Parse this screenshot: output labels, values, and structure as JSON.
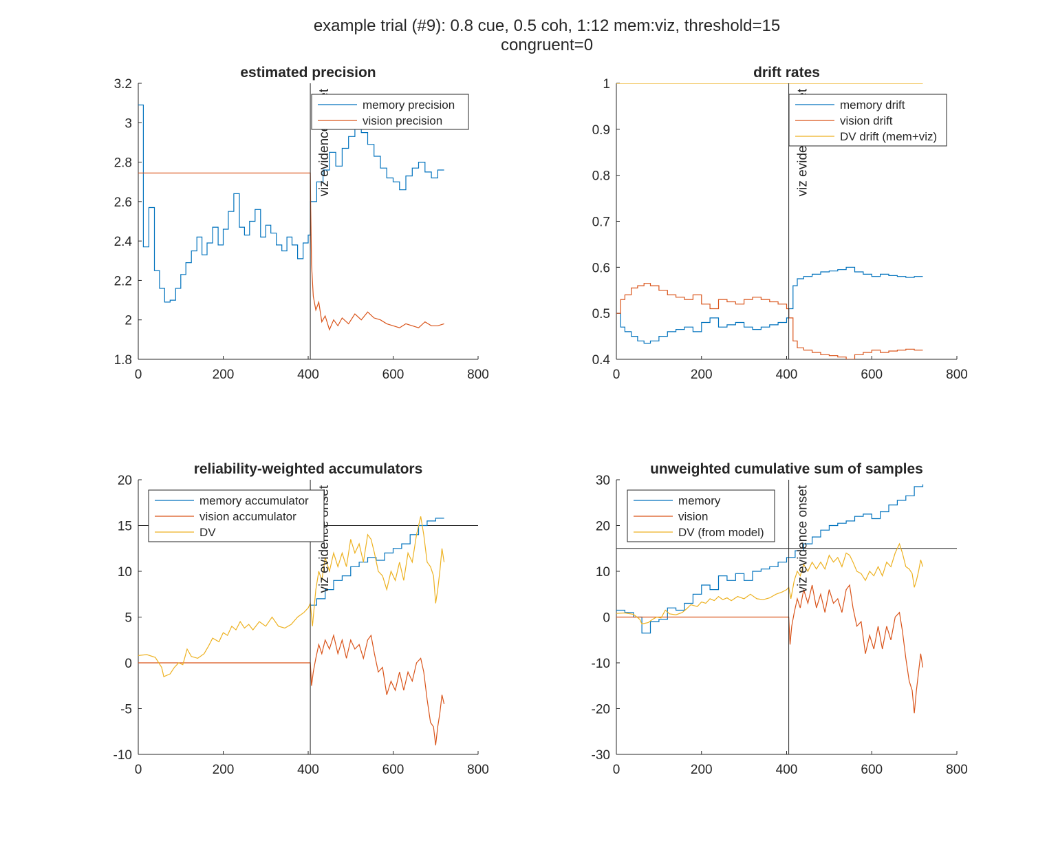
{
  "figure": {
    "title_line1": "example trial (#9): 0.8 cue, 0.5 coh, 1:12 mem:viz, threshold=15",
    "title_line2": "congruent=0"
  },
  "colors": {
    "blue": "#0072BD",
    "orange": "#D95319",
    "yellow": "#EDB120",
    "axis": "#262626",
    "refline": "#262626"
  },
  "chart_data": [
    {
      "type": "line",
      "title": "estimated precision",
      "xlim": [
        0,
        800
      ],
      "ylim": [
        1.8,
        3.2
      ],
      "xticks": [
        0,
        200,
        400,
        600,
        800
      ],
      "yticks": [
        1.8,
        2,
        2.2,
        2.4,
        2.6,
        2.8,
        3,
        3.2
      ],
      "grid": false,
      "legend_position": "top-right",
      "vline": {
        "x": 405,
        "label": "viz evidence onset"
      },
      "series": [
        {
          "name": "memory precision",
          "color": "blue",
          "step": true,
          "x": [
            0,
            12,
            25,
            38,
            50,
            62,
            75,
            88,
            100,
            112,
            125,
            138,
            150,
            162,
            175,
            188,
            200,
            212,
            225,
            238,
            250,
            262,
            275,
            288,
            300,
            312,
            325,
            338,
            350,
            362,
            375,
            388,
            400,
            405,
            420,
            435,
            450,
            465,
            480,
            495,
            510,
            525,
            540,
            555,
            570,
            585,
            600,
            615,
            630,
            645,
            660,
            675,
            690,
            705,
            720
          ],
          "y": [
            3.09,
            2.37,
            2.57,
            2.25,
            2.16,
            2.09,
            2.1,
            2.16,
            2.23,
            2.29,
            2.35,
            2.42,
            2.33,
            2.39,
            2.47,
            2.38,
            2.46,
            2.55,
            2.64,
            2.47,
            2.43,
            2.5,
            2.56,
            2.42,
            2.48,
            2.44,
            2.38,
            2.35,
            2.42,
            2.38,
            2.31,
            2.39,
            2.43,
            2.6,
            2.7,
            2.76,
            2.85,
            2.78,
            2.87,
            2.93,
            2.98,
            2.95,
            2.89,
            2.83,
            2.77,
            2.72,
            2.7,
            2.66,
            2.73,
            2.77,
            2.8,
            2.75,
            2.72,
            2.76,
            2.76
          ]
        },
        {
          "name": "vision precision",
          "color": "orange",
          "step": false,
          "x": [
            0,
            405,
            406,
            408,
            412,
            418,
            425,
            432,
            440,
            450,
            460,
            470,
            480,
            495,
            510,
            525,
            540,
            555,
            570,
            585,
            600,
            615,
            630,
            645,
            660,
            675,
            690,
            705,
            720
          ],
          "y": [
            2.745,
            2.745,
            2.56,
            2.28,
            2.12,
            2.05,
            2.09,
            1.99,
            2.02,
            1.95,
            2.0,
            1.97,
            2.01,
            1.98,
            2.03,
            2.0,
            2.04,
            2.01,
            2.0,
            1.98,
            1.97,
            1.96,
            1.98,
            1.97,
            1.96,
            1.99,
            1.97,
            1.97,
            1.98
          ]
        }
      ]
    },
    {
      "type": "line",
      "title": "drift rates",
      "xlim": [
        0,
        800
      ],
      "ylim": [
        0.4,
        1
      ],
      "xticks": [
        0,
        200,
        400,
        600,
        800
      ],
      "yticks": [
        0.4,
        0.5,
        0.6,
        0.7,
        0.8,
        0.9,
        1
      ],
      "grid": false,
      "legend_position": "top-right",
      "vline": {
        "x": 405,
        "label": "viz evidence onset"
      },
      "series": [
        {
          "name": "memory drift",
          "color": "blue",
          "step": true,
          "x": [
            0,
            10,
            20,
            35,
            50,
            65,
            80,
            100,
            120,
            140,
            160,
            180,
            200,
            220,
            240,
            260,
            280,
            300,
            320,
            340,
            360,
            380,
            400,
            405,
            415,
            425,
            440,
            460,
            480,
            500,
            520,
            540,
            560,
            580,
            600,
            620,
            640,
            660,
            680,
            700,
            720
          ],
          "y": [
            0.5,
            0.47,
            0.46,
            0.45,
            0.44,
            0.435,
            0.44,
            0.45,
            0.46,
            0.465,
            0.47,
            0.46,
            0.48,
            0.49,
            0.47,
            0.475,
            0.48,
            0.47,
            0.465,
            0.47,
            0.475,
            0.48,
            0.49,
            0.51,
            0.56,
            0.575,
            0.58,
            0.585,
            0.59,
            0.592,
            0.595,
            0.6,
            0.59,
            0.585,
            0.58,
            0.585,
            0.582,
            0.58,
            0.578,
            0.58,
            0.58
          ]
        },
        {
          "name": "vision drift",
          "color": "orange",
          "step": true,
          "x": [
            0,
            10,
            20,
            35,
            50,
            65,
            80,
            100,
            120,
            140,
            160,
            180,
            200,
            220,
            240,
            260,
            280,
            300,
            320,
            340,
            360,
            380,
            400,
            405,
            415,
            425,
            440,
            460,
            480,
            500,
            520,
            540,
            560,
            580,
            600,
            620,
            640,
            660,
            680,
            700,
            720
          ],
          "y": [
            0.5,
            0.53,
            0.54,
            0.555,
            0.56,
            0.565,
            0.56,
            0.55,
            0.54,
            0.535,
            0.53,
            0.54,
            0.52,
            0.51,
            0.53,
            0.525,
            0.52,
            0.53,
            0.535,
            0.53,
            0.525,
            0.52,
            0.51,
            0.49,
            0.44,
            0.425,
            0.42,
            0.415,
            0.41,
            0.408,
            0.405,
            0.4,
            0.41,
            0.415,
            0.42,
            0.415,
            0.418,
            0.42,
            0.422,
            0.42,
            0.42
          ]
        },
        {
          "name": "DV drift (mem+viz)",
          "color": "yellow",
          "step": false,
          "x": [
            0,
            720
          ],
          "y": [
            1,
            1
          ]
        }
      ]
    },
    {
      "type": "line",
      "title": "reliability-weighted accumulators",
      "xlim": [
        0,
        800
      ],
      "ylim": [
        -10,
        20
      ],
      "xticks": [
        0,
        200,
        400,
        600,
        800
      ],
      "yticks": [
        -10,
        -5,
        0,
        5,
        10,
        15,
        20
      ],
      "grid": false,
      "legend_position": "top-left",
      "vline": {
        "x": 405,
        "label": "viz evidence onset"
      },
      "hline": {
        "y": 15
      },
      "series": [
        {
          "name": "memory accumulator",
          "color": "blue",
          "step": true,
          "x": [
            405,
            420,
            440,
            460,
            480,
            500,
            520,
            540,
            560,
            580,
            600,
            620,
            640,
            660,
            680,
            700,
            720
          ],
          "y": [
            6.3,
            7.0,
            8.0,
            9.0,
            9.5,
            10.5,
            11.0,
            11.5,
            11.2,
            12.0,
            12.5,
            13.0,
            14.0,
            15.0,
            15.5,
            15.8,
            15.8
          ]
        },
        {
          "name": "vision accumulator",
          "color": "orange",
          "step": false,
          "x": [
            0,
            405,
            408,
            412,
            418,
            425,
            432,
            440,
            450,
            460,
            470,
            480,
            490,
            500,
            510,
            520,
            530,
            540,
            548,
            556,
            565,
            575,
            585,
            595,
            605,
            615,
            625,
            635,
            645,
            655,
            665,
            672,
            680,
            688,
            695,
            700,
            705,
            710,
            715,
            720
          ],
          "y": [
            0,
            0,
            -2.5,
            -1.0,
            0.5,
            2.0,
            1.0,
            2.5,
            1.5,
            3.0,
            1.0,
            2.5,
            0.5,
            2.5,
            1.5,
            2.0,
            0.5,
            2.5,
            3.0,
            1.0,
            -1.0,
            -0.5,
            -3.5,
            -2.0,
            -3.0,
            -1.0,
            -3.0,
            -1.0,
            -2.0,
            0.0,
            0.5,
            -1.0,
            -4.0,
            -6.5,
            -7.0,
            -9.0,
            -7.0,
            -5.5,
            -3.5,
            -4.5
          ]
        },
        {
          "name": "DV",
          "color": "yellow",
          "step": false,
          "x": [
            0,
            20,
            40,
            55,
            60,
            75,
            85,
            95,
            105,
            115,
            125,
            140,
            155,
            165,
            175,
            190,
            200,
            210,
            220,
            230,
            240,
            250,
            260,
            270,
            285,
            300,
            315,
            330,
            345,
            360,
            375,
            390,
            400,
            405,
            410,
            418,
            425,
            432,
            440,
            450,
            460,
            470,
            480,
            490,
            500,
            510,
            520,
            530,
            540,
            548,
            556,
            565,
            575,
            585,
            595,
            605,
            615,
            625,
            635,
            645,
            655,
            665,
            672,
            680,
            688,
            695,
            700,
            705,
            710,
            715,
            720
          ],
          "y": [
            0.8,
            0.9,
            0.6,
            -0.5,
            -1.5,
            -1.2,
            -0.5,
            0.0,
            -0.2,
            1.5,
            0.7,
            0.5,
            1.0,
            1.8,
            2.7,
            2.3,
            3.3,
            3.0,
            4.0,
            3.6,
            4.5,
            3.8,
            4.2,
            3.6,
            4.5,
            4.0,
            5.0,
            4.0,
            3.8,
            4.2,
            5.0,
            5.5,
            6.0,
            6.5,
            4.0,
            8.0,
            10.0,
            9.0,
            11.5,
            10.0,
            12.0,
            10.5,
            12.0,
            10.5,
            13.5,
            12.0,
            13.0,
            11.0,
            14.0,
            13.5,
            12.0,
            10.0,
            9.5,
            8.0,
            10.0,
            9.0,
            11.0,
            9.0,
            12.0,
            11.0,
            14.0,
            16.0,
            14.0,
            11.0,
            10.5,
            9.5,
            6.5,
            8.0,
            10.0,
            12.5,
            11.0
          ]
        }
      ]
    },
    {
      "type": "line",
      "title": "unweighted cumulative sum of samples",
      "xlim": [
        0,
        800
      ],
      "ylim": [
        -30,
        30
      ],
      "xticks": [
        0,
        200,
        400,
        600,
        800
      ],
      "yticks": [
        -30,
        -20,
        -10,
        0,
        10,
        20,
        30
      ],
      "grid": false,
      "legend_position": "top-left",
      "vline": {
        "x": 405,
        "label": "viz evidence onset"
      },
      "hline": {
        "y": 15
      },
      "series": [
        {
          "name": "memory",
          "color": "blue",
          "step": true,
          "x": [
            0,
            20,
            40,
            60,
            80,
            100,
            120,
            140,
            160,
            180,
            200,
            220,
            240,
            260,
            280,
            300,
            320,
            340,
            360,
            380,
            400,
            420,
            440,
            460,
            480,
            500,
            520,
            540,
            560,
            580,
            600,
            620,
            640,
            660,
            680,
            700,
            720
          ],
          "y": [
            1.5,
            1.0,
            0.0,
            -3.5,
            -1.0,
            -0.5,
            2.0,
            1.5,
            3.0,
            5.0,
            7.0,
            6.0,
            9.0,
            8.0,
            9.5,
            8.0,
            10.0,
            10.5,
            11.0,
            12.0,
            13.0,
            14.5,
            16.0,
            17.5,
            19.0,
            20.0,
            20.5,
            21.0,
            22.0,
            22.5,
            21.5,
            23.0,
            24.5,
            25.5,
            26.5,
            28.5,
            29.0
          ]
        },
        {
          "name": "vision",
          "color": "orange",
          "step": false,
          "x": [
            0,
            405,
            408,
            412,
            418,
            425,
            432,
            440,
            450,
            460,
            470,
            480,
            490,
            500,
            510,
            520,
            530,
            540,
            548,
            556,
            565,
            575,
            585,
            595,
            605,
            615,
            625,
            635,
            645,
            655,
            665,
            672,
            680,
            688,
            695,
            700,
            705,
            710,
            715,
            720
          ],
          "y": [
            0,
            0,
            -6.0,
            -2.0,
            1.0,
            4.0,
            2.0,
            6.0,
            3.0,
            7.0,
            2.0,
            5.0,
            1.0,
            6.0,
            3.0,
            4.0,
            1.0,
            6.0,
            7.0,
            2.0,
            -2.0,
            -1.0,
            -8.0,
            -4.0,
            -7.0,
            -2.0,
            -7.0,
            -2.0,
            -5.0,
            0.0,
            1.0,
            -3.0,
            -9.0,
            -14.0,
            -16.0,
            -21.0,
            -16.0,
            -12.0,
            -8.0,
            -11.0
          ]
        },
        {
          "name": "DV (from model)",
          "color": "yellow",
          "step": false,
          "x": [
            0,
            20,
            40,
            55,
            60,
            75,
            85,
            95,
            105,
            115,
            125,
            140,
            155,
            165,
            175,
            190,
            200,
            210,
            220,
            230,
            240,
            250,
            260,
            270,
            285,
            300,
            315,
            330,
            345,
            360,
            375,
            390,
            400,
            405,
            410,
            418,
            425,
            432,
            440,
            450,
            460,
            470,
            480,
            490,
            500,
            510,
            520,
            530,
            540,
            548,
            556,
            565,
            575,
            585,
            595,
            605,
            615,
            625,
            635,
            645,
            655,
            665,
            672,
            680,
            688,
            695,
            700,
            705,
            710,
            715,
            720
          ],
          "y": [
            0.8,
            0.9,
            0.6,
            -0.5,
            -1.5,
            -1.2,
            -0.5,
            0.0,
            -0.2,
            1.5,
            0.7,
            0.5,
            1.0,
            1.8,
            2.7,
            2.3,
            3.3,
            3.0,
            4.0,
            3.6,
            4.5,
            3.8,
            4.2,
            3.6,
            4.5,
            4.0,
            5.0,
            4.0,
            3.8,
            4.2,
            5.0,
            5.5,
            6.0,
            6.5,
            4.0,
            8.0,
            10.0,
            9.0,
            11.5,
            10.0,
            12.0,
            10.5,
            12.0,
            10.5,
            13.5,
            12.0,
            13.0,
            11.0,
            14.0,
            13.5,
            12.0,
            10.0,
            9.5,
            8.0,
            10.0,
            9.0,
            11.0,
            9.0,
            12.0,
            11.0,
            14.0,
            16.0,
            14.0,
            11.0,
            10.5,
            9.5,
            6.5,
            8.0,
            10.0,
            12.5,
            11.0
          ]
        }
      ]
    }
  ]
}
